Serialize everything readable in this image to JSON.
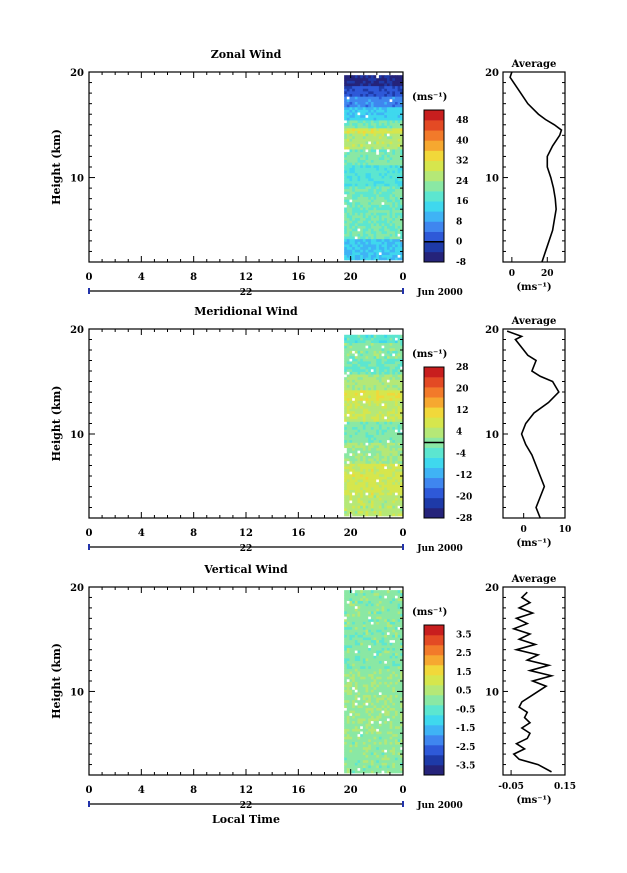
{
  "chart_data": [
    {
      "type": "heatmap",
      "title": "Zonal Wind",
      "ylabel": "Height (km)",
      "xlabel": "",
      "y_range": [
        2,
        20
      ],
      "y_ticks": [
        10,
        20
      ],
      "x_range": [
        0,
        24
      ],
      "x_ticks": [
        "0",
        "4",
        "8",
        "12",
        "16",
        "20",
        "0"
      ],
      "x_tick_values": [
        0,
        4,
        8,
        12,
        16,
        20,
        24
      ],
      "date_day": "22",
      "date_month_year": "Jun 2000",
      "data_time_range": [
        19.5,
        24
      ],
      "data_height_range": [
        2.2,
        19.5
      ],
      "colorbar": {
        "unit": "(ms⁻¹)",
        "range": [
          -8,
          52
        ],
        "tick_labels": [
          "48",
          "40",
          "32",
          "24",
          "16",
          "8",
          "0",
          "-8"
        ],
        "tick_values": [
          48,
          40,
          32,
          24,
          16,
          8,
          0,
          -8
        ],
        "zero_line": 0
      },
      "layers": [
        {
          "y0": 2.2,
          "y1": 4,
          "value": 12
        },
        {
          "y0": 4,
          "y1": 9,
          "value": 20
        },
        {
          "y0": 9,
          "y1": 11,
          "value": 17
        },
        {
          "y0": 11,
          "y1": 12.5,
          "value": 21
        },
        {
          "y0": 12.5,
          "y1": 14,
          "value": 26
        },
        {
          "y0": 14,
          "y1": 14.6,
          "value": 30
        },
        {
          "y0": 14.6,
          "y1": 15.4,
          "value": 20
        },
        {
          "y0": 15.4,
          "y1": 16.5,
          "value": 13
        },
        {
          "y0": 16.5,
          "y1": 17.6,
          "value": 6
        },
        {
          "y0": 17.6,
          "y1": 18.6,
          "value": 1
        },
        {
          "y0": 18.6,
          "y1": 19.5,
          "value": -5
        }
      ],
      "profile": {
        "title": "Average",
        "xlabel": "(ms⁻¹)",
        "x_range": [
          -5,
          30
        ],
        "x_ticks": [
          "0",
          "20"
        ],
        "x_tick_values": [
          0,
          20
        ],
        "y_ticks": [
          "10",
          "20"
        ],
        "y_tick_values": [
          10,
          20
        ],
        "points": [
          [
            17,
            2
          ],
          [
            19,
            3
          ],
          [
            21,
            4
          ],
          [
            23,
            5
          ],
          [
            24,
            6
          ],
          [
            25,
            7
          ],
          [
            24.5,
            8
          ],
          [
            23.5,
            9
          ],
          [
            22,
            10
          ],
          [
            20,
            11
          ],
          [
            20,
            12
          ],
          [
            23,
            13
          ],
          [
            27,
            14
          ],
          [
            28,
            14.5
          ],
          [
            24,
            15
          ],
          [
            19,
            15.5
          ],
          [
            15,
            16
          ],
          [
            12,
            16.5
          ],
          [
            9,
            17
          ],
          [
            5,
            18
          ],
          [
            1,
            19
          ],
          [
            -1,
            19.5
          ],
          [
            0,
            20
          ]
        ]
      }
    },
    {
      "type": "heatmap",
      "title": "Meridional Wind",
      "ylabel": "Height (km)",
      "xlabel": "",
      "y_range": [
        2,
        20
      ],
      "y_ticks": [
        10,
        20
      ],
      "x_range": [
        0,
        24
      ],
      "x_ticks": [
        "0",
        "4",
        "8",
        "12",
        "16",
        "20",
        "0"
      ],
      "x_tick_values": [
        0,
        4,
        8,
        12,
        16,
        20,
        24
      ],
      "date_day": "22",
      "date_month_year": "Jun 2000",
      "data_time_range": [
        19.5,
        24
      ],
      "data_height_range": [
        2.2,
        19.3
      ],
      "colorbar": {
        "unit": "(ms⁻¹)",
        "range": [
          -28,
          28
        ],
        "tick_labels": [
          "28",
          "20",
          "12",
          "4",
          "-4",
          "-12",
          "-20",
          "-28"
        ],
        "tick_values": [
          28,
          20,
          12,
          4,
          -4,
          -12,
          -20,
          -28
        ],
        "zero_line": 0
      },
      "layers": [
        {
          "y0": 2.2,
          "y1": 4,
          "value": 4
        },
        {
          "y0": 4,
          "y1": 7,
          "value": 7
        },
        {
          "y0": 7,
          "y1": 9,
          "value": 2
        },
        {
          "y0": 9,
          "y1": 11,
          "value": -1
        },
        {
          "y0": 11,
          "y1": 13,
          "value": 5
        },
        {
          "y0": 13,
          "y1": 14.2,
          "value": 8
        },
        {
          "y0": 14.2,
          "y1": 15.5,
          "value": 3
        },
        {
          "y0": 15.5,
          "y1": 17,
          "value": -2
        },
        {
          "y0": 17,
          "y1": 18.5,
          "value": 0
        },
        {
          "y0": 18.5,
          "y1": 19.3,
          "value": -4
        }
      ],
      "profile": {
        "title": "Average",
        "xlabel": "(ms⁻¹)",
        "x_range": [
          -5,
          10
        ],
        "x_ticks": [
          "0",
          "10"
        ],
        "x_tick_values": [
          0,
          10
        ],
        "y_ticks": [
          "10",
          "20"
        ],
        "y_tick_values": [
          10,
          20
        ],
        "points": [
          [
            4,
            2
          ],
          [
            3,
            3
          ],
          [
            4,
            4
          ],
          [
            5,
            5
          ],
          [
            4,
            6
          ],
          [
            3,
            7
          ],
          [
            2,
            8
          ],
          [
            0.5,
            9
          ],
          [
            -0.5,
            10
          ],
          [
            0.5,
            11
          ],
          [
            2.5,
            12
          ],
          [
            6,
            13
          ],
          [
            8.5,
            14
          ],
          [
            7,
            15
          ],
          [
            4,
            15.5
          ],
          [
            2,
            16
          ],
          [
            3,
            17
          ],
          [
            1,
            17.5
          ],
          [
            0,
            18
          ],
          [
            -1,
            18.5
          ],
          [
            -2,
            19
          ],
          [
            -0.5,
            19.3
          ],
          [
            -4,
            19.8
          ]
        ]
      }
    },
    {
      "type": "heatmap",
      "title": "Vertical Wind",
      "ylabel": "Height (km)",
      "xlabel": "Local Time",
      "y_range": [
        2,
        20
      ],
      "y_ticks": [
        10,
        20
      ],
      "x_range": [
        0,
        24
      ],
      "x_ticks": [
        "0",
        "4",
        "8",
        "12",
        "16",
        "20",
        "0"
      ],
      "x_tick_values": [
        0,
        4,
        8,
        12,
        16,
        20,
        24
      ],
      "date_day": "22",
      "date_month_year": "Jun 2000",
      "data_time_range": [
        19.5,
        24
      ],
      "data_height_range": [
        2.2,
        19.6
      ],
      "colorbar": {
        "unit": "(ms⁻¹)",
        "range": [
          -4,
          4
        ],
        "tick_labels": [
          "3.5",
          "2.5",
          "1.5",
          "0.5",
          "-0.5",
          "-1.5",
          "-2.5",
          "-3.5"
        ],
        "tick_values": [
          3.5,
          2.5,
          1.5,
          0.5,
          -0.5,
          -1.5,
          -2.5,
          -3.5
        ],
        "zero_line": null
      },
      "layers": [
        {
          "y0": 2.2,
          "y1": 6,
          "value": 0.05
        },
        {
          "y0": 6,
          "y1": 12,
          "value": 0.12
        },
        {
          "y0": 12,
          "y1": 16,
          "value": -0.05
        },
        {
          "y0": 16,
          "y1": 19.6,
          "value": 0.02
        }
      ],
      "profile": {
        "title": "Average",
        "xlabel": "(ms⁻¹)",
        "x_range": [
          -0.08,
          0.15
        ],
        "x_ticks": [
          "-0.05",
          "0.15"
        ],
        "x_tick_values": [
          -0.05,
          0.15
        ],
        "y_ticks": [
          "10",
          "20"
        ],
        "y_tick_values": [
          10,
          20
        ],
        "points": [
          [
            0.1,
            2.3
          ],
          [
            0.05,
            3
          ],
          [
            -0.02,
            3.5
          ],
          [
            -0.04,
            4
          ],
          [
            0.0,
            4.5
          ],
          [
            -0.03,
            5
          ],
          [
            0.01,
            5.5
          ],
          [
            0.02,
            6
          ],
          [
            -0.01,
            6.5
          ],
          [
            0.02,
            7
          ],
          [
            0.0,
            7.5
          ],
          [
            0.01,
            8
          ],
          [
            -0.02,
            8.5
          ],
          [
            -0.01,
            9
          ],
          [
            0.02,
            9.5
          ],
          [
            0.05,
            10
          ],
          [
            0.08,
            10.5
          ],
          [
            0.03,
            11
          ],
          [
            0.1,
            11.5
          ],
          [
            0.02,
            12
          ],
          [
            0.09,
            12.5
          ],
          [
            0.01,
            13
          ],
          [
            0.05,
            13.5
          ],
          [
            -0.03,
            14
          ],
          [
            0.04,
            14.5
          ],
          [
            -0.02,
            15
          ],
          [
            0.02,
            15.5
          ],
          [
            -0.04,
            16
          ],
          [
            0.01,
            16.5
          ],
          [
            -0.03,
            17
          ],
          [
            0.03,
            17.5
          ],
          [
            -0.02,
            18
          ],
          [
            0.02,
            18.5
          ],
          [
            -0.01,
            19
          ],
          [
            0.01,
            19.5
          ]
        ]
      }
    }
  ],
  "colors": {
    "axis": "#000000",
    "missing": "#ffffff",
    "palette": [
      "#25237a",
      "#1e3aa8",
      "#2e59d8",
      "#3f86ef",
      "#3fb3f5",
      "#3fd8ee",
      "#5ce6d0",
      "#8ae8a4",
      "#b5e877",
      "#d6e64d",
      "#f1d83a",
      "#f6a830",
      "#f27a2a",
      "#e34a24",
      "#c81e1e"
    ]
  }
}
